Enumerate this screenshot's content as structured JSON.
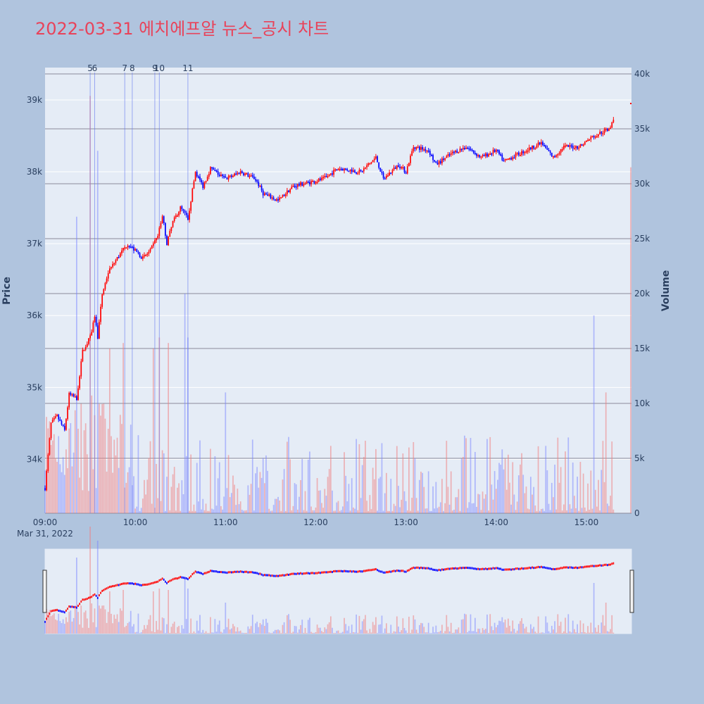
{
  "chart_data": {
    "type": "candlestick",
    "title": "2022-03-31 에치에프알 뉴스_공시 차트",
    "ylabel": "Price",
    "y2label": "Volume",
    "x_ticks": [
      "09:00",
      "10:00",
      "11:00",
      "12:00",
      "13:00",
      "14:00",
      "15:00"
    ],
    "x_sublabel": "Mar 31, 2022",
    "x_range": [
      "09:00",
      "15:30"
    ],
    "y_ticks": [
      "34k",
      "35k",
      "36k",
      "37k",
      "38k",
      "39k"
    ],
    "y_range": [
      33250,
      39450
    ],
    "y2_ticks": [
      "0",
      "5k",
      "10k",
      "15k",
      "20k",
      "25k",
      "30k",
      "35k",
      "40k"
    ],
    "y2_range": [
      0,
      40000
    ],
    "up_color": "#ff0000",
    "down_color": "#0000ff",
    "price_keypoints": [
      [
        "09:00",
        33600
      ],
      [
        "09:04",
        34500
      ],
      [
        "09:08",
        34600
      ],
      [
        "09:13",
        34400
      ],
      [
        "09:16",
        34900
      ],
      [
        "09:21",
        34850
      ],
      [
        "09:25",
        35500
      ],
      [
        "09:30",
        35700
      ],
      [
        "09:33",
        36000
      ],
      [
        "09:35",
        35700
      ],
      [
        "09:38",
        36300
      ],
      [
        "09:42",
        36600
      ],
      [
        "09:48",
        36800
      ],
      [
        "09:55",
        37000
      ],
      [
        "10:00",
        36900
      ],
      [
        "10:05",
        36800
      ],
      [
        "10:10",
        36900
      ],
      [
        "10:15",
        37100
      ],
      [
        "10:18",
        37400
      ],
      [
        "10:21",
        37000
      ],
      [
        "10:25",
        37300
      ],
      [
        "10:30",
        37500
      ],
      [
        "10:35",
        37350
      ],
      [
        "10:40",
        38000
      ],
      [
        "10:45",
        37800
      ],
      [
        "10:50",
        38050
      ],
      [
        "11:00",
        37900
      ],
      [
        "11:10",
        38000
      ],
      [
        "11:20",
        37900
      ],
      [
        "11:25",
        37700
      ],
      [
        "11:35",
        37600
      ],
      [
        "11:45",
        37800
      ],
      [
        "11:55",
        37850
      ],
      [
        "12:05",
        37900
      ],
      [
        "12:15",
        38050
      ],
      [
        "12:30",
        38000
      ],
      [
        "12:40",
        38200
      ],
      [
        "12:45",
        37900
      ],
      [
        "12:55",
        38100
      ],
      [
        "13:00",
        38000
      ],
      [
        "13:05",
        38350
      ],
      [
        "13:15",
        38300
      ],
      [
        "13:20",
        38100
      ],
      [
        "13:30",
        38250
      ],
      [
        "13:40",
        38350
      ],
      [
        "13:50",
        38200
      ],
      [
        "14:00",
        38300
      ],
      [
        "14:05",
        38150
      ],
      [
        "14:10",
        38200
      ],
      [
        "14:20",
        38300
      ],
      [
        "14:30",
        38400
      ],
      [
        "14:38",
        38200
      ],
      [
        "14:45",
        38350
      ],
      [
        "14:55",
        38350
      ],
      [
        "15:05",
        38500
      ],
      [
        "15:15",
        38600
      ],
      [
        "15:18",
        38700
      ]
    ],
    "volume_spikes": [
      [
        "09:21",
        27000
      ],
      [
        "09:30",
        38000
      ],
      [
        "09:35",
        33000
      ],
      [
        "09:43",
        15000
      ],
      [
        "09:52",
        15500
      ],
      [
        "10:12",
        15000
      ],
      [
        "10:16",
        16000
      ],
      [
        "10:22",
        15500
      ],
      [
        "10:33",
        20000
      ],
      [
        "10:35",
        16000
      ],
      [
        "11:00",
        11000
      ],
      [
        "15:05",
        18000
      ],
      [
        "15:13",
        11000
      ],
      [
        "15:30",
        31500
      ]
    ],
    "news_markers": [
      {
        "label": "5",
        "time": "09:30"
      },
      {
        "label": "6",
        "time": "09:33"
      },
      {
        "label": "7",
        "time": "09:53"
      },
      {
        "label": "8",
        "time": "09:58"
      },
      {
        "label": "9",
        "time": "10:13"
      },
      {
        "label": "10",
        "time": "10:16"
      },
      {
        "label": "11",
        "time": "10:35"
      }
    ],
    "last_price": 38950
  }
}
